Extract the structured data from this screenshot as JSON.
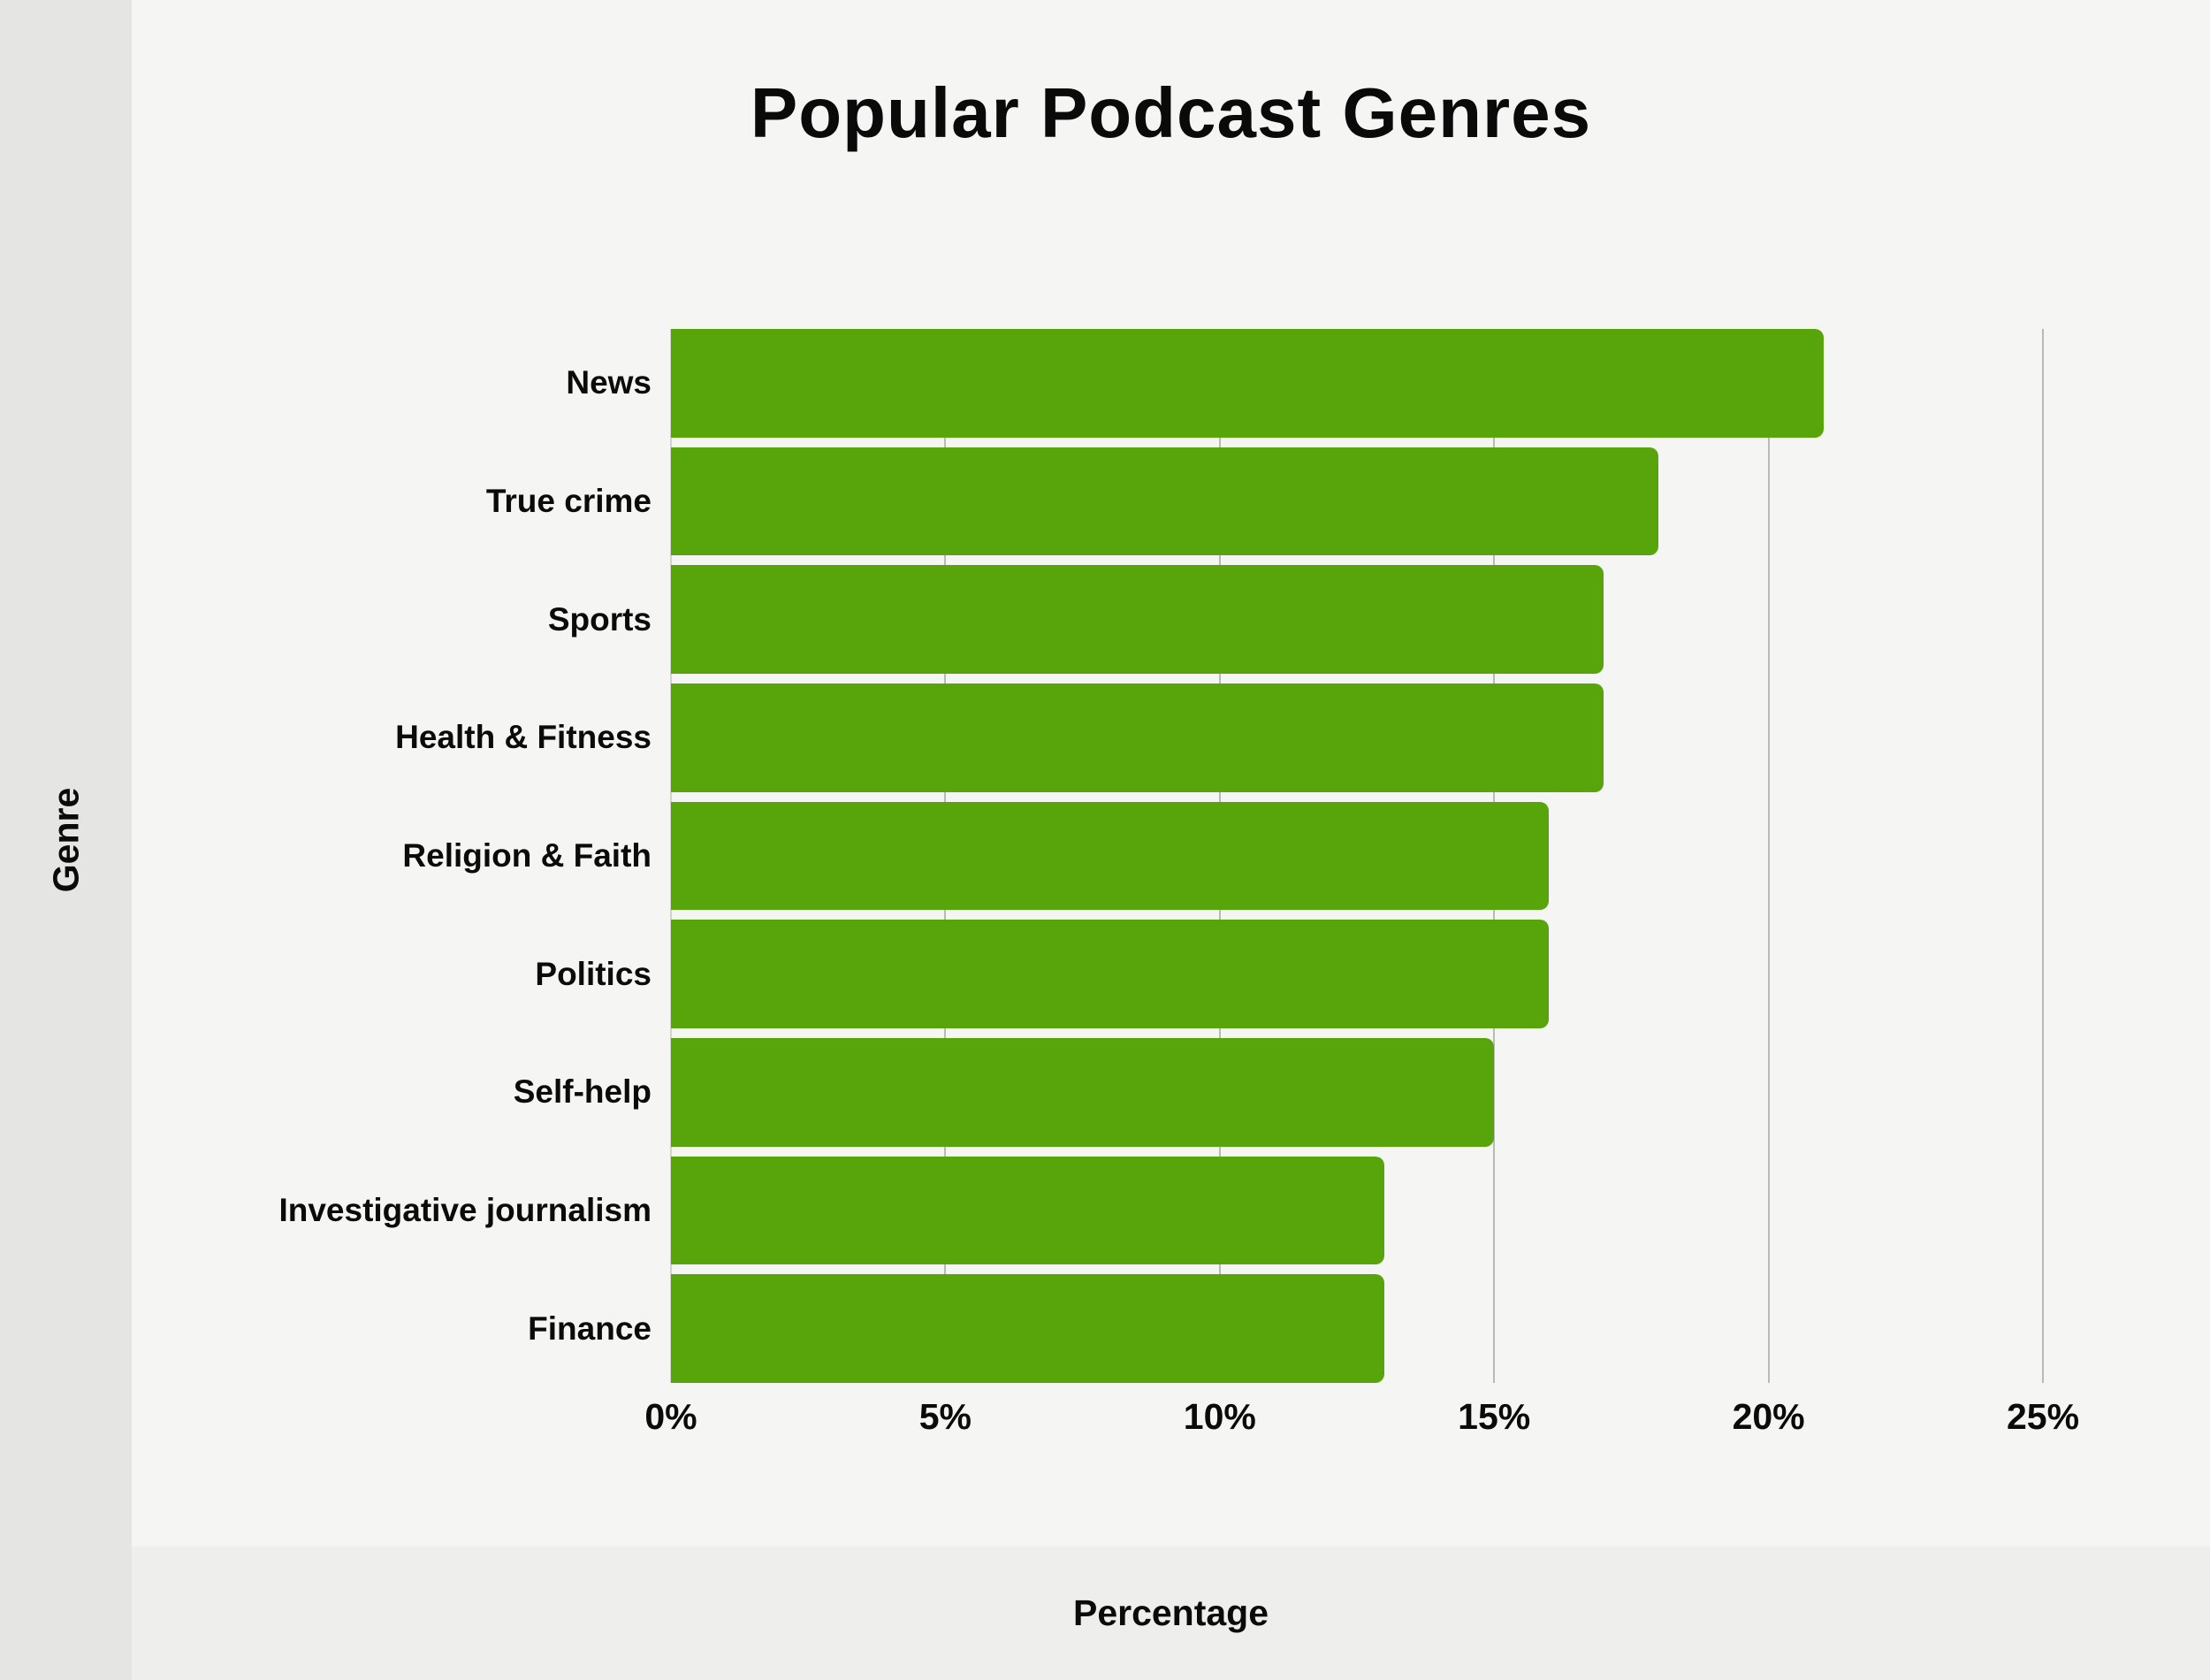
{
  "chart_data": {
    "type": "bar",
    "orientation": "horizontal",
    "title": "Popular Podcast Genres",
    "xlabel": "Percentage",
    "ylabel": "Genre",
    "categories": [
      "News",
      "True crime",
      "Sports",
      "Health & Fitness",
      "Religion & Faith",
      "Politics",
      "Self-help",
      "Investigative journalism",
      "Finance"
    ],
    "values": [
      21,
      18,
      17,
      17,
      16,
      16,
      15,
      13,
      13
    ],
    "unit": "%",
    "xlim": [
      0,
      25
    ],
    "x_tick_values": [
      0,
      5,
      10,
      15,
      20,
      25
    ],
    "x_tick_labels": [
      "0%",
      "5%",
      "10%",
      "15%",
      "20%",
      "25%"
    ],
    "grid": "vertical",
    "legend": "none",
    "bar_color": "#58a40b"
  },
  "colors": {
    "bar": "#58a40b",
    "background": "#f5f5f4",
    "left_strip": "#e5e5e4",
    "bottom_strip": "#eeeeed",
    "gridline": "#b9b9b8",
    "text": "#0b0b0b"
  }
}
